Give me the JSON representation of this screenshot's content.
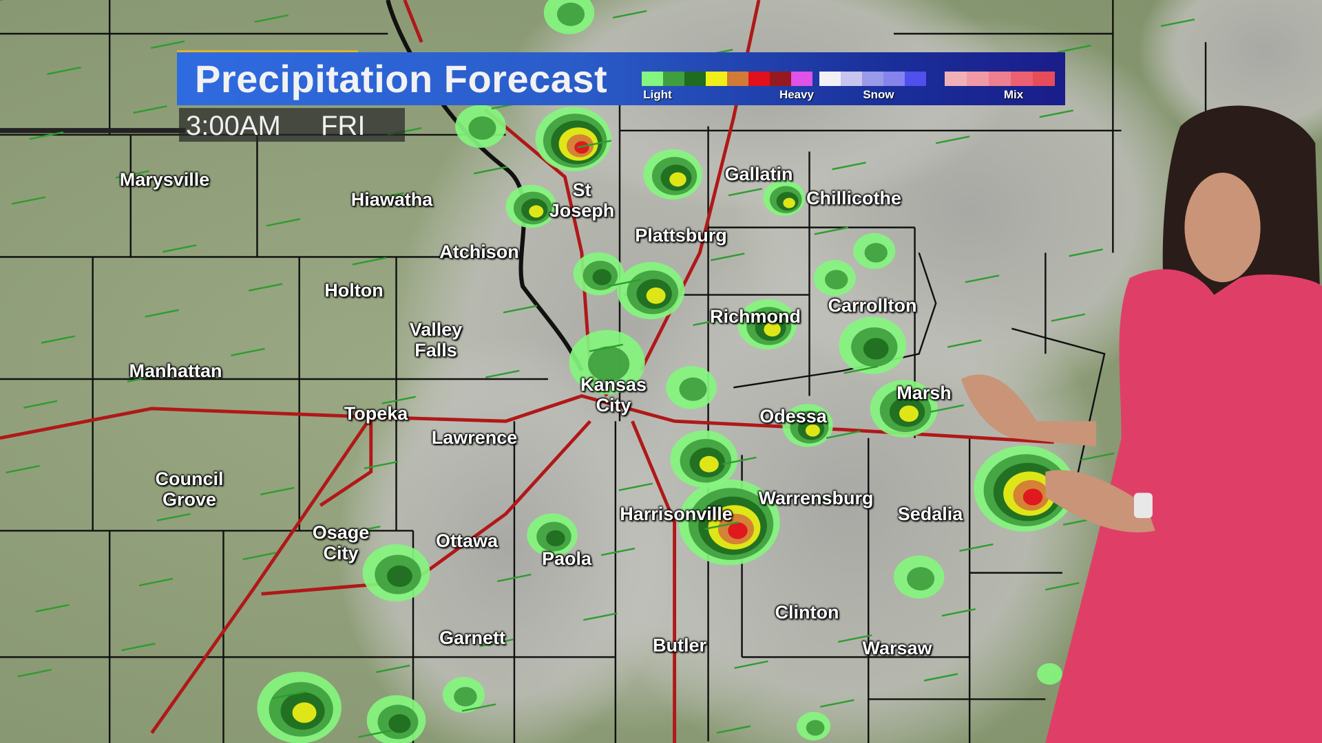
{
  "header": {
    "title": "Precipitation Forecast",
    "time": "3:00AM",
    "day": "FRI"
  },
  "legend": {
    "labels": {
      "light": "Light",
      "heavy": "Heavy",
      "snow": "Snow",
      "mix": "Mix"
    },
    "rain_colors": [
      "#84f57e",
      "#3f9f3e",
      "#1f6b1f",
      "#f0f018",
      "#d27a38",
      "#e0101c",
      "#961820",
      "#e052e8"
    ],
    "snow_colors": [
      "#f2f2f6",
      "#c8c6ee",
      "#9a9aea",
      "#8484ec",
      "#5050ec"
    ],
    "mix_colors": [
      "#f0b0b8",
      "#f09aa6",
      "#ec8090",
      "#ea6272",
      "#e64c5a"
    ]
  },
  "colors": {
    "header_blue": "#2f6be0",
    "header_accent": "#e2b32a",
    "highway": "#b01818"
  },
  "cities": [
    {
      "name": "Marysville"
    },
    {
      "name": "Hiawatha"
    },
    {
      "name": "St\nJoseph"
    },
    {
      "name": "Gallatin"
    },
    {
      "name": "Chillicothe"
    },
    {
      "name": "Plattsburg"
    },
    {
      "name": "Atchison"
    },
    {
      "name": "Holton"
    },
    {
      "name": "Richmond"
    },
    {
      "name": "Carrollton"
    },
    {
      "name": "Valley\nFalls"
    },
    {
      "name": "Manhattan"
    },
    {
      "name": "Kansas\nCity"
    },
    {
      "name": "Marsh"
    },
    {
      "name": "Topeka"
    },
    {
      "name": "Odessa"
    },
    {
      "name": "Lawrence"
    },
    {
      "name": "Council\nGrove"
    },
    {
      "name": "Warrensburg"
    },
    {
      "name": "Harrisonville"
    },
    {
      "name": "Sedalia"
    },
    {
      "name": "Osage\nCity"
    },
    {
      "name": "Ottawa"
    },
    {
      "name": "Paola"
    },
    {
      "name": "Clinton"
    },
    {
      "name": "Garnett"
    },
    {
      "name": "Butler"
    },
    {
      "name": "Warsaw"
    }
  ]
}
